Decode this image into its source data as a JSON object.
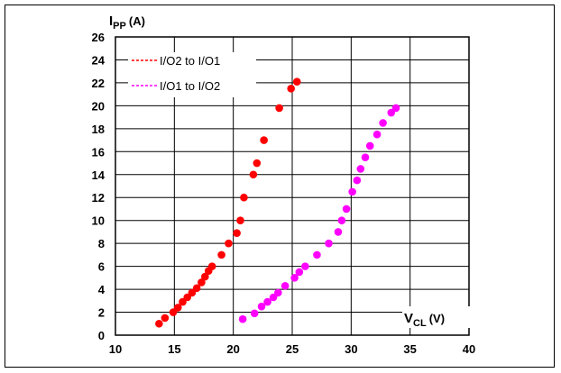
{
  "chart_data": {
    "type": "scatter",
    "ylabel": {
      "main": "I",
      "sub": "PP",
      "unit": "(A)"
    },
    "xlabel": {
      "main": "V",
      "sub": "CL",
      "unit": "(V)"
    },
    "xlim": [
      10,
      40
    ],
    "ylim": [
      0,
      26
    ],
    "xticks": [
      "10",
      "15",
      "20",
      "25",
      "30",
      "35",
      "40"
    ],
    "yticks": [
      "0",
      "2",
      "4",
      "6",
      "8",
      "10",
      "12",
      "14",
      "16",
      "18",
      "20",
      "22",
      "24",
      "26"
    ],
    "grid": true,
    "legend_position": "top-left",
    "series": [
      {
        "name": "I/O2 to I/O1",
        "color": "#ff0000",
        "points": [
          [
            13.7,
            1.0
          ],
          [
            14.2,
            1.5
          ],
          [
            14.9,
            2.0
          ],
          [
            15.3,
            2.4
          ],
          [
            15.7,
            2.9
          ],
          [
            16.1,
            3.3
          ],
          [
            16.5,
            3.7
          ],
          [
            16.9,
            4.1
          ],
          [
            17.3,
            4.6
          ],
          [
            17.6,
            5.1
          ],
          [
            17.9,
            5.6
          ],
          [
            18.2,
            6.0
          ],
          [
            19.0,
            7.0
          ],
          [
            19.6,
            8.0
          ],
          [
            20.3,
            8.9
          ],
          [
            20.6,
            10.0
          ],
          [
            20.9,
            12.0
          ],
          [
            21.7,
            14.0
          ],
          [
            22.0,
            15.0
          ],
          [
            22.6,
            17.0
          ],
          [
            23.9,
            19.8
          ],
          [
            24.9,
            21.5
          ],
          [
            25.4,
            22.1
          ]
        ]
      },
      {
        "name": "I/O1 to I/O2",
        "color": "#ff00ff",
        "points": [
          [
            20.8,
            1.4
          ],
          [
            21.8,
            1.9
          ],
          [
            22.4,
            2.5
          ],
          [
            22.9,
            2.9
          ],
          [
            23.4,
            3.3
          ],
          [
            23.8,
            3.7
          ],
          [
            24.4,
            4.3
          ],
          [
            25.2,
            5.0
          ],
          [
            25.6,
            5.5
          ],
          [
            26.1,
            6.0
          ],
          [
            27.1,
            7.0
          ],
          [
            28.1,
            8.0
          ],
          [
            28.9,
            9.0
          ],
          [
            29.2,
            10.0
          ],
          [
            29.6,
            11.0
          ],
          [
            30.1,
            12.5
          ],
          [
            30.5,
            13.5
          ],
          [
            30.8,
            14.5
          ],
          [
            31.2,
            15.5
          ],
          [
            31.6,
            16.5
          ],
          [
            32.2,
            17.5
          ],
          [
            32.7,
            18.5
          ],
          [
            33.4,
            19.4
          ],
          [
            33.8,
            19.8
          ]
        ]
      }
    ]
  }
}
